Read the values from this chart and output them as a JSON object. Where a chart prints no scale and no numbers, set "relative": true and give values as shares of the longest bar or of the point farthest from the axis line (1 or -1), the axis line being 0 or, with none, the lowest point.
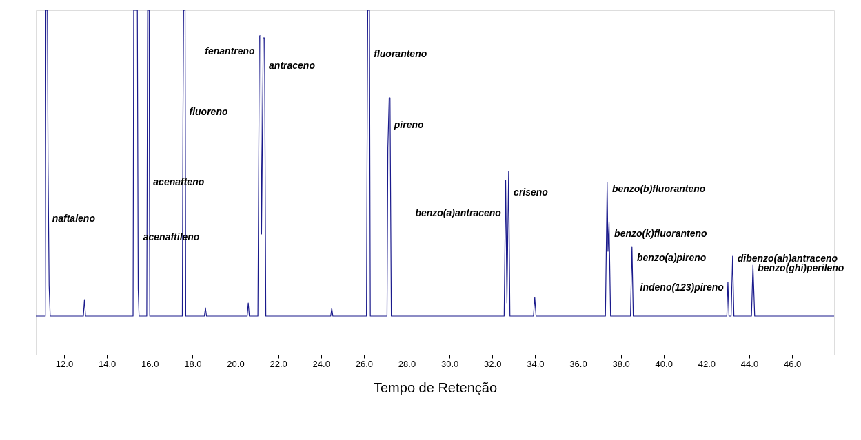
{
  "chart_data": {
    "type": "line",
    "relative": true,
    "xlabel": "Tempo de Retenção",
    "xlim": [
      10.68,
      47.96
    ],
    "xticks": [
      {
        "value": 12,
        "label": "12.0"
      },
      {
        "value": 14,
        "label": "14.0"
      },
      {
        "value": 16,
        "label": "16.0"
      },
      {
        "value": 18,
        "label": "18.0"
      },
      {
        "value": 20,
        "label": "20.0"
      },
      {
        "value": 22,
        "label": "22.0"
      },
      {
        "value": 24,
        "label": "24.0"
      },
      {
        "value": 26,
        "label": "26.0"
      },
      {
        "value": 28,
        "label": "28.0"
      },
      {
        "value": 30,
        "label": "30.0"
      },
      {
        "value": 32,
        "label": "32.0"
      },
      {
        "value": 34,
        "label": "34.0"
      },
      {
        "value": 36,
        "label": "36.0"
      },
      {
        "value": 38,
        "label": "38.0"
      },
      {
        "value": 40,
        "label": "40.0"
      },
      {
        "value": 42,
        "label": "42.0"
      },
      {
        "value": 44,
        "label": "44.0"
      },
      {
        "value": 46,
        "label": "46.0"
      }
    ],
    "series": [
      {
        "color": "#1a1a8c",
        "x": [
          10.68,
          11.12,
          11.15,
          11.22,
          11.25,
          11.3,
          11.35,
          12.9,
          12.95,
          13.0,
          15.22,
          15.25,
          15.42,
          15.46,
          15.5,
          15.86,
          15.9,
          15.97,
          16.0,
          17.52,
          17.55,
          17.58,
          17.65,
          17.68,
          18.55,
          18.6,
          18.65,
          20.55,
          20.6,
          20.65,
          21.05,
          21.12,
          21.18,
          21.22,
          21.3,
          21.36,
          21.42,
          24.45,
          24.5,
          24.55,
          26.12,
          26.15,
          26.18,
          26.26,
          26.3,
          27.08,
          27.12,
          27.18,
          27.22,
          27.28,
          32.55,
          32.62,
          32.68,
          32.76,
          32.82,
          33.92,
          33.98,
          34.04,
          37.28,
          37.36,
          37.4,
          37.45,
          37.52,
          38.45,
          38.52,
          38.58,
          42.95,
          43.0,
          43.05,
          43.15,
          43.22,
          43.28,
          44.1,
          44.17,
          44.25,
          47.96
        ],
        "values": [
          0.112,
          0.112,
          1.0,
          1.0,
          0.56,
          0.2,
          0.112,
          0.112,
          0.16,
          0.112,
          0.112,
          1.0,
          1.0,
          0.19,
          0.112,
          0.112,
          1.0,
          1.0,
          0.112,
          0.112,
          0.68,
          1.0,
          1.0,
          0.112,
          0.112,
          0.136,
          0.112,
          0.112,
          0.15,
          0.112,
          0.112,
          0.926,
          0.926,
          0.35,
          0.92,
          0.92,
          0.112,
          0.112,
          0.135,
          0.112,
          0.112,
          0.6,
          1.0,
          1.0,
          0.112,
          0.112,
          0.6,
          0.746,
          0.746,
          0.112,
          0.112,
          0.506,
          0.15,
          0.532,
          0.112,
          0.112,
          0.166,
          0.112,
          0.112,
          0.5,
          0.3,
          0.384,
          0.112,
          0.112,
          0.314,
          0.112,
          0.112,
          0.21,
          0.112,
          0.112,
          0.286,
          0.112,
          0.112,
          0.26,
          0.112,
          0.112
        ]
      }
    ],
    "annotations": [
      {
        "text": "naftaleno",
        "x": 11.25,
        "y": 0.394
      },
      {
        "text": "acenaftileno",
        "x": 15.5,
        "y": 0.34
      },
      {
        "text": "acenafteno",
        "x": 15.97,
        "y": 0.5
      },
      {
        "text": "fluoreno",
        "x": 17.65,
        "y": 0.704
      },
      {
        "text": "fenantreno",
        "x": 21.1,
        "y": 0.88
      },
      {
        "text": "antraceno",
        "x": 21.37,
        "y": 0.838
      },
      {
        "text": "fluoranteno",
        "x": 26.27,
        "y": 0.872
      },
      {
        "text": "pireno",
        "x": 27.22,
        "y": 0.666
      },
      {
        "text": "benzo(a)antraceno",
        "x": 32.6,
        "y": 0.41
      },
      {
        "text": "criseno",
        "x": 32.8,
        "y": 0.47
      },
      {
        "text": "benzo(b)fluoranteno",
        "x": 37.4,
        "y": 0.48
      },
      {
        "text": "benzo(k)fluoranteno",
        "x": 37.5,
        "y": 0.35
      },
      {
        "text": "benzo(a)pireno",
        "x": 38.56,
        "y": 0.28
      },
      {
        "text": "indeno(123)pireno",
        "x": 43.0,
        "y": 0.194
      },
      {
        "text": "dibenzo(ah)antraceno",
        "x": 43.25,
        "y": 0.278
      },
      {
        "text": "benzo(ghi)perileno",
        "x": 44.2,
        "y": 0.25
      }
    ],
    "grid": false,
    "marker": "none",
    "line_style": "solid"
  }
}
